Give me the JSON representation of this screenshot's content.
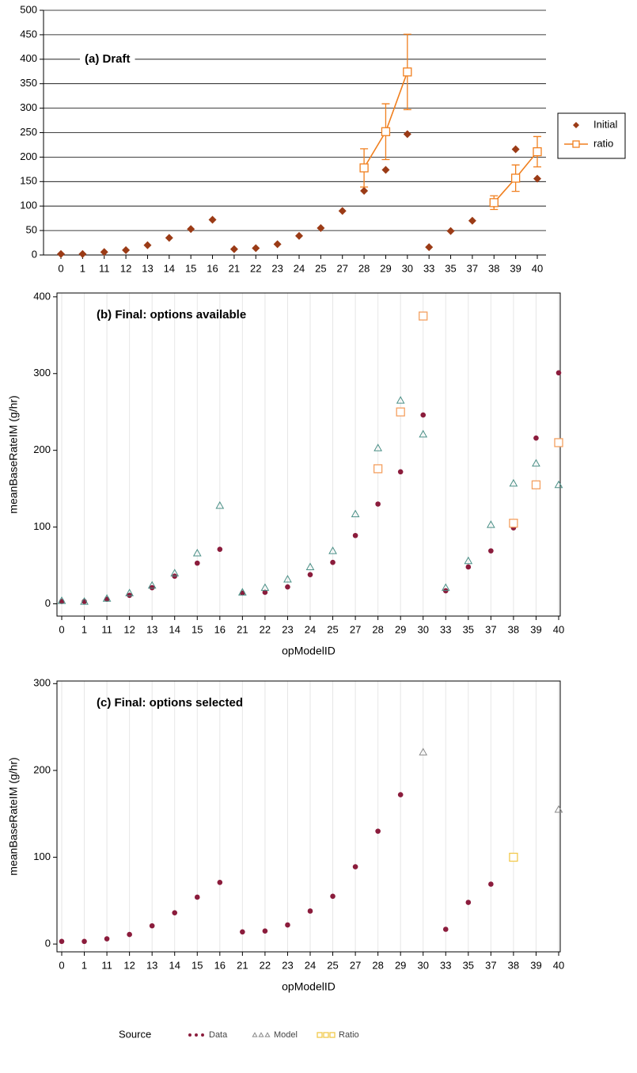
{
  "chart_data": [
    {
      "type": "scatter",
      "annotation": "(a) Draft",
      "categories": [
        "0",
        "1",
        "11",
        "12",
        "13",
        "14",
        "15",
        "16",
        "21",
        "22",
        "23",
        "24",
        "25",
        "27",
        "28",
        "29",
        "30",
        "33",
        "35",
        "37",
        "38",
        "39",
        "40"
      ],
      "series": [
        {
          "name": "Initial",
          "color": "#9b3b16",
          "marker": "diamond",
          "line": false,
          "values": [
            2,
            2,
            6,
            10,
            20,
            35,
            53,
            72,
            12,
            14,
            22,
            39,
            55,
            90,
            131,
            174,
            247,
            16,
            49,
            70,
            104,
            216,
            156
          ]
        },
        {
          "name": "ratio",
          "color": "#f07f1e",
          "marker": "square",
          "line": true,
          "values": [
            null,
            null,
            null,
            null,
            null,
            null,
            null,
            null,
            null,
            null,
            null,
            null,
            null,
            null,
            178,
            252,
            374,
            null,
            null,
            null,
            107,
            157,
            211
          ],
          "errors": [
            null,
            null,
            null,
            null,
            null,
            null,
            null,
            null,
            null,
            null,
            null,
            null,
            null,
            null,
            39,
            57,
            77,
            null,
            null,
            null,
            14,
            27,
            31
          ]
        }
      ],
      "ylim": [
        0,
        500
      ],
      "yticks": [
        0,
        50,
        100,
        150,
        200,
        250,
        300,
        350,
        400,
        450,
        500
      ],
      "grid": "y",
      "frame": false,
      "legend": "right"
    },
    {
      "type": "scatter",
      "annotation": "(b) Final: options available",
      "xlabel": "opModelID",
      "ylabel": "meanBaseRateIM (g/hr)",
      "categories": [
        "0",
        "1",
        "11",
        "12",
        "13",
        "14",
        "15",
        "16",
        "21",
        "22",
        "23",
        "24",
        "25",
        "27",
        "28",
        "29",
        "30",
        "33",
        "35",
        "37",
        "38",
        "39",
        "40"
      ],
      "series": [
        {
          "name": "Data",
          "color": "#8b1c3c",
          "marker": "circle",
          "line": false,
          "values": [
            3,
            3,
            6,
            11,
            21,
            36,
            53,
            71,
            14,
            15,
            22,
            38,
            54,
            89,
            130,
            172,
            246,
            17,
            48,
            69,
            99,
            216,
            301
          ]
        },
        {
          "name": "Model",
          "color": "#4a8f86",
          "marker": "triangle",
          "line": false,
          "values": [
            4,
            3,
            7,
            14,
            24,
            40,
            66,
            128,
            15,
            21,
            32,
            48,
            69,
            117,
            203,
            265,
            221,
            21,
            56,
            103,
            157,
            183,
            155
          ]
        },
        {
          "name": "Ratio",
          "color": "#f4a060",
          "marker": "square",
          "line": false,
          "values": [
            null,
            null,
            null,
            null,
            null,
            null,
            null,
            null,
            null,
            null,
            null,
            null,
            null,
            null,
            176,
            250,
            375,
            null,
            null,
            null,
            105,
            155,
            210
          ]
        }
      ],
      "ylim": [
        -16,
        405
      ],
      "yticks": [
        0,
        100,
        200,
        300,
        400
      ],
      "grid": "x",
      "frame": true
    },
    {
      "type": "scatter",
      "annotation": "(c) Final: options selected",
      "xlabel": "opModelID",
      "ylabel": "meanBaseRateIM (g/hr)",
      "legend_title": "Source",
      "categories": [
        "0",
        "1",
        "11",
        "12",
        "13",
        "14",
        "15",
        "16",
        "21",
        "22",
        "23",
        "24",
        "25",
        "27",
        "28",
        "29",
        "30",
        "33",
        "35",
        "37",
        "38",
        "39",
        "40"
      ],
      "series": [
        {
          "name": "Data",
          "color": "#8b1c3c",
          "marker": "circle",
          "line": false,
          "values": [
            3,
            3,
            6,
            11,
            21,
            36,
            54,
            71,
            14,
            15,
            22,
            38,
            55,
            89,
            130,
            172,
            null,
            17,
            48,
            69,
            99,
            null,
            null
          ]
        },
        {
          "name": "Model",
          "color": "#8a8a8a",
          "marker": "triangle",
          "line": false,
          "values": [
            null,
            null,
            null,
            null,
            null,
            null,
            null,
            null,
            null,
            null,
            null,
            null,
            null,
            null,
            null,
            null,
            221,
            null,
            null,
            null,
            null,
            null,
            155
          ]
        },
        {
          "name": "Ratio",
          "color": "#f2c94c",
          "marker": "square",
          "line": false,
          "values": [
            null,
            null,
            null,
            null,
            null,
            null,
            null,
            null,
            null,
            null,
            null,
            null,
            null,
            null,
            null,
            null,
            null,
            null,
            null,
            null,
            100,
            null,
            null
          ]
        }
      ],
      "ylim": [
        -9,
        303
      ],
      "yticks": [
        0,
        100,
        200,
        300
      ],
      "grid": "x",
      "frame": true,
      "legend": "bottom"
    }
  ]
}
